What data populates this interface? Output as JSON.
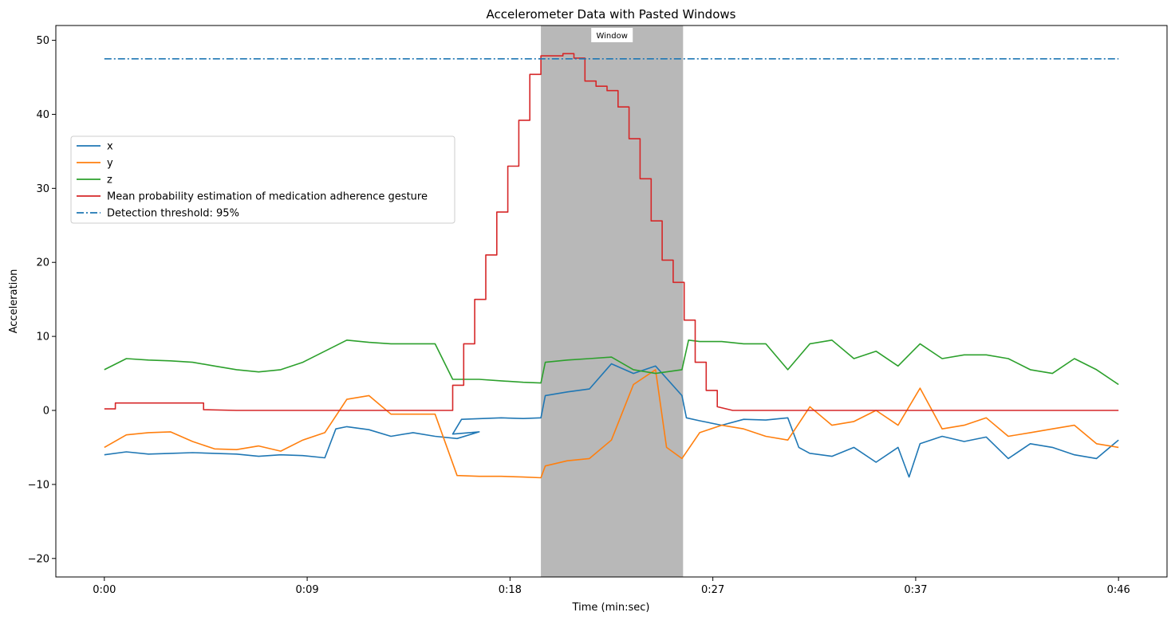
{
  "chart_data": {
    "type": "line",
    "title": "Accelerometer Data with Pasted Windows",
    "xlabel": "Time (min:sec)",
    "ylabel": "Acceleration",
    "xlim_seconds": [
      -2.2,
      48.2
    ],
    "ylim": [
      -22.5,
      52
    ],
    "x_ticks": [
      {
        "seconds": 0,
        "label": "0:00"
      },
      {
        "seconds": 9.2,
        "label": "0:09"
      },
      {
        "seconds": 18.4,
        "label": "0:18"
      },
      {
        "seconds": 27.6,
        "label": "0:27"
      },
      {
        "seconds": 36.8,
        "label": "0:37"
      },
      {
        "seconds": 46,
        "label": "0:46"
      }
    ],
    "y_ticks": [
      -20,
      -10,
      0,
      10,
      20,
      30,
      40,
      50
    ],
    "grid": false,
    "legend_placement": "center-left",
    "window": {
      "label": "Window",
      "x_start": 19.8,
      "x_end": 26.25,
      "color": "#b8b8b8"
    },
    "threshold": {
      "name": "Detection threshold: 95%",
      "value": 47.5,
      "color": "#1f77b4",
      "style": "dashdot"
    },
    "series": [
      {
        "name": "x",
        "color": "#1f77b4",
        "points": [
          [
            0,
            -6.0
          ],
          [
            1,
            -5.6
          ],
          [
            2,
            -5.9
          ],
          [
            3,
            -5.8
          ],
          [
            4,
            -5.7
          ],
          [
            5,
            -5.8
          ],
          [
            6,
            -5.9
          ],
          [
            7,
            -6.2
          ],
          [
            8,
            -6.0
          ],
          [
            9,
            -6.1
          ],
          [
            10,
            -6.4
          ],
          [
            10.5,
            -2.5
          ],
          [
            11,
            -2.2
          ],
          [
            12,
            -2.6
          ],
          [
            13,
            -3.5
          ],
          [
            14,
            -3.0
          ],
          [
            15,
            -3.5
          ],
          [
            16,
            -3.8
          ],
          [
            17,
            -2.9
          ],
          [
            15.8,
            -3.2
          ],
          [
            16.2,
            -1.2
          ],
          [
            18,
            -1.0
          ],
          [
            19,
            -1.1
          ],
          [
            19.8,
            -1.0
          ],
          [
            20,
            2.0
          ],
          [
            21,
            2.5
          ],
          [
            22,
            2.9
          ],
          [
            23,
            6.3
          ],
          [
            24,
            5.0
          ],
          [
            25,
            6.0
          ],
          [
            26.2,
            2.0
          ],
          [
            26.4,
            -1.0
          ],
          [
            27,
            -1.4
          ],
          [
            28,
            -2.0
          ],
          [
            29,
            -1.2
          ],
          [
            30,
            -1.3
          ],
          [
            31,
            -1.0
          ],
          [
            31.5,
            -5.0
          ],
          [
            32,
            -5.8
          ],
          [
            33,
            -6.2
          ],
          [
            34,
            -5.0
          ],
          [
            35,
            -7.0
          ],
          [
            36,
            -5.0
          ],
          [
            36.5,
            -9.0
          ],
          [
            37,
            -4.5
          ],
          [
            38,
            -3.5
          ],
          [
            39,
            -4.2
          ],
          [
            40,
            -3.6
          ],
          [
            41,
            -6.5
          ],
          [
            42,
            -4.5
          ],
          [
            43,
            -5.0
          ],
          [
            44,
            -6.0
          ],
          [
            45,
            -6.5
          ],
          [
            46,
            -4.0
          ]
        ]
      },
      {
        "name": "y",
        "color": "#ff7f0e",
        "points": [
          [
            0,
            -5.0
          ],
          [
            1,
            -3.3
          ],
          [
            2,
            -3.0
          ],
          [
            3,
            -2.9
          ],
          [
            4,
            -4.2
          ],
          [
            5,
            -5.2
          ],
          [
            6,
            -5.3
          ],
          [
            7,
            -4.8
          ],
          [
            8,
            -5.5
          ],
          [
            9,
            -4.0
          ],
          [
            10,
            -3.0
          ],
          [
            11,
            1.5
          ],
          [
            12,
            2.0
          ],
          [
            13,
            -0.5
          ],
          [
            14,
            -0.5
          ],
          [
            15,
            -0.5
          ],
          [
            16,
            -8.8
          ],
          [
            17,
            -8.9
          ],
          [
            18,
            -8.9
          ],
          [
            19,
            -9.0
          ],
          [
            19.8,
            -9.1
          ],
          [
            20,
            -7.5
          ],
          [
            21,
            -6.8
          ],
          [
            22,
            -6.5
          ],
          [
            23,
            -4.0
          ],
          [
            24,
            3.5
          ],
          [
            25,
            5.5
          ],
          [
            25.5,
            -5.0
          ],
          [
            26.2,
            -6.5
          ],
          [
            27,
            -3.0
          ],
          [
            28,
            -2.0
          ],
          [
            29,
            -2.5
          ],
          [
            30,
            -3.5
          ],
          [
            31,
            -4.0
          ],
          [
            32,
            0.5
          ],
          [
            33,
            -2.0
          ],
          [
            34,
            -1.5
          ],
          [
            35,
            0.0
          ],
          [
            36,
            -2.0
          ],
          [
            37,
            3.0
          ],
          [
            38,
            -2.5
          ],
          [
            39,
            -2.0
          ],
          [
            40,
            -1.0
          ],
          [
            41,
            -3.5
          ],
          [
            42,
            -3.0
          ],
          [
            43,
            -2.5
          ],
          [
            44,
            -2.0
          ],
          [
            45,
            -4.5
          ],
          [
            46,
            -5.0
          ]
        ]
      },
      {
        "name": "z",
        "color": "#2ca02c",
        "points": [
          [
            0,
            5.5
          ],
          [
            1,
            7.0
          ],
          [
            2,
            6.8
          ],
          [
            3,
            6.7
          ],
          [
            4,
            6.5
          ],
          [
            5,
            6.0
          ],
          [
            6,
            5.5
          ],
          [
            7,
            5.2
          ],
          [
            8,
            5.5
          ],
          [
            9,
            6.5
          ],
          [
            10,
            8.0
          ],
          [
            11,
            9.5
          ],
          [
            12,
            9.2
          ],
          [
            13,
            9.0
          ],
          [
            14,
            9.0
          ],
          [
            15,
            9.0
          ],
          [
            15.8,
            4.2
          ],
          [
            17,
            4.2
          ],
          [
            18,
            4.0
          ],
          [
            19,
            3.8
          ],
          [
            19.8,
            3.7
          ],
          [
            20,
            6.5
          ],
          [
            21,
            6.8
          ],
          [
            22,
            7.0
          ],
          [
            23,
            7.2
          ],
          [
            24,
            5.5
          ],
          [
            25,
            5.0
          ],
          [
            26.2,
            5.5
          ],
          [
            26.5,
            9.5
          ],
          [
            27,
            9.3
          ],
          [
            28,
            9.3
          ],
          [
            29,
            9.0
          ],
          [
            30,
            9.0
          ],
          [
            31,
            5.5
          ],
          [
            32,
            9.0
          ],
          [
            33,
            9.5
          ],
          [
            34,
            7.0
          ],
          [
            35,
            8.0
          ],
          [
            36,
            6.0
          ],
          [
            37,
            9.0
          ],
          [
            38,
            7.0
          ],
          [
            39,
            7.5
          ],
          [
            40,
            7.5
          ],
          [
            41,
            7.0
          ],
          [
            42,
            5.5
          ],
          [
            43,
            5.0
          ],
          [
            44,
            7.0
          ],
          [
            45,
            5.5
          ],
          [
            46,
            3.5
          ]
        ]
      },
      {
        "name": "Mean probability estimation of medication adherence gesture",
        "color": "#d62728",
        "points": [
          [
            0,
            0.2
          ],
          [
            0.5,
            0.2
          ],
          [
            0.5,
            1.0
          ],
          [
            4.5,
            1.0
          ],
          [
            4.5,
            0.1
          ],
          [
            6,
            0.0
          ],
          [
            15.8,
            0.0
          ],
          [
            15.8,
            3.4
          ],
          [
            16.3,
            3.4
          ],
          [
            16.3,
            9.0
          ],
          [
            16.8,
            9.0
          ],
          [
            16.8,
            15.0
          ],
          [
            17.3,
            15.0
          ],
          [
            17.3,
            21.0
          ],
          [
            17.8,
            21.0
          ],
          [
            17.8,
            26.8
          ],
          [
            18.3,
            26.8
          ],
          [
            18.3,
            33.0
          ],
          [
            18.8,
            33.0
          ],
          [
            18.8,
            39.2
          ],
          [
            19.3,
            39.2
          ],
          [
            19.3,
            45.4
          ],
          [
            19.8,
            45.4
          ],
          [
            19.8,
            47.9
          ],
          [
            20.8,
            47.9
          ],
          [
            20.8,
            48.2
          ],
          [
            21.3,
            48.2
          ],
          [
            21.3,
            47.6
          ],
          [
            21.8,
            47.6
          ],
          [
            21.8,
            44.5
          ],
          [
            22.3,
            44.5
          ],
          [
            22.3,
            43.8
          ],
          [
            22.8,
            43.8
          ],
          [
            22.8,
            43.2
          ],
          [
            23.3,
            43.2
          ],
          [
            23.3,
            41.0
          ],
          [
            23.8,
            41.0
          ],
          [
            23.8,
            36.7
          ],
          [
            24.3,
            36.7
          ],
          [
            24.3,
            31.3
          ],
          [
            24.8,
            31.3
          ],
          [
            24.8,
            25.6
          ],
          [
            25.3,
            25.6
          ],
          [
            25.3,
            20.3
          ],
          [
            25.8,
            20.3
          ],
          [
            25.8,
            17.3
          ],
          [
            26.3,
            17.3
          ],
          [
            26.3,
            12.2
          ],
          [
            26.8,
            12.2
          ],
          [
            26.8,
            6.5
          ],
          [
            27.3,
            6.5
          ],
          [
            27.3,
            2.7
          ],
          [
            27.8,
            2.7
          ],
          [
            27.8,
            0.5
          ],
          [
            28.5,
            0.0
          ],
          [
            46,
            0.0
          ]
        ]
      }
    ],
    "annotations": [
      "Window"
    ]
  }
}
